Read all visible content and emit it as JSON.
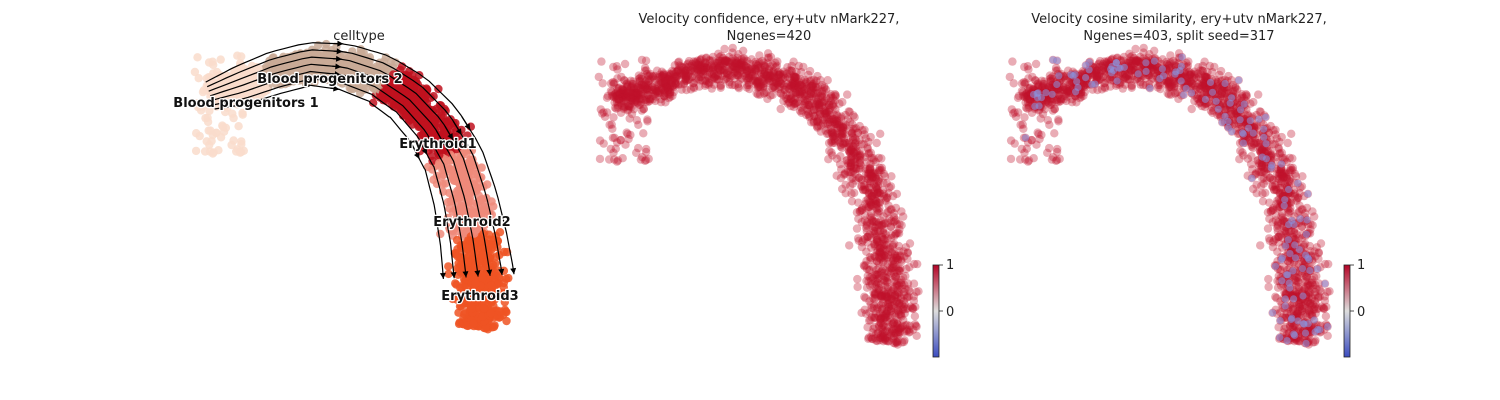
{
  "chart_data": [
    {
      "type": "scatter",
      "title": "celltype",
      "overlay": "velocity streamlines",
      "categories": [
        {
          "name": "Blood progenitors 1",
          "color": "#f9dccb"
        },
        {
          "name": "Blood progenitors 2",
          "color": "#c9aa97"
        },
        {
          "name": "Erythroid1",
          "color": "#c0121f"
        },
        {
          "name": "Erythroid2",
          "color": "#ef8a7a"
        },
        {
          "name": "Erythroid3",
          "color": "#ef5323"
        }
      ],
      "grid": false,
      "axes": "off"
    },
    {
      "type": "scatter",
      "title_line1": "Velocity confidence, ery+utv nMark227,",
      "title_line2": "Ngenes=420",
      "colormap": "coolwarm",
      "colorbar_ticks": [
        "1",
        "0"
      ],
      "dominant_value": 1,
      "grid": false,
      "axes": "off"
    },
    {
      "type": "scatter",
      "title_line1": "Velocity cosine similarity, ery+utv nMark227,",
      "title_line2": "Ngenes=403, split seed=317",
      "colormap": "coolwarm",
      "colorbar_ticks": [
        "1",
        "0"
      ],
      "dominant_value": 1,
      "grid": false,
      "axes": "off"
    }
  ],
  "colors": {
    "high": "#c0112b",
    "low": "#8a96e0",
    "arrow": "#000000"
  }
}
